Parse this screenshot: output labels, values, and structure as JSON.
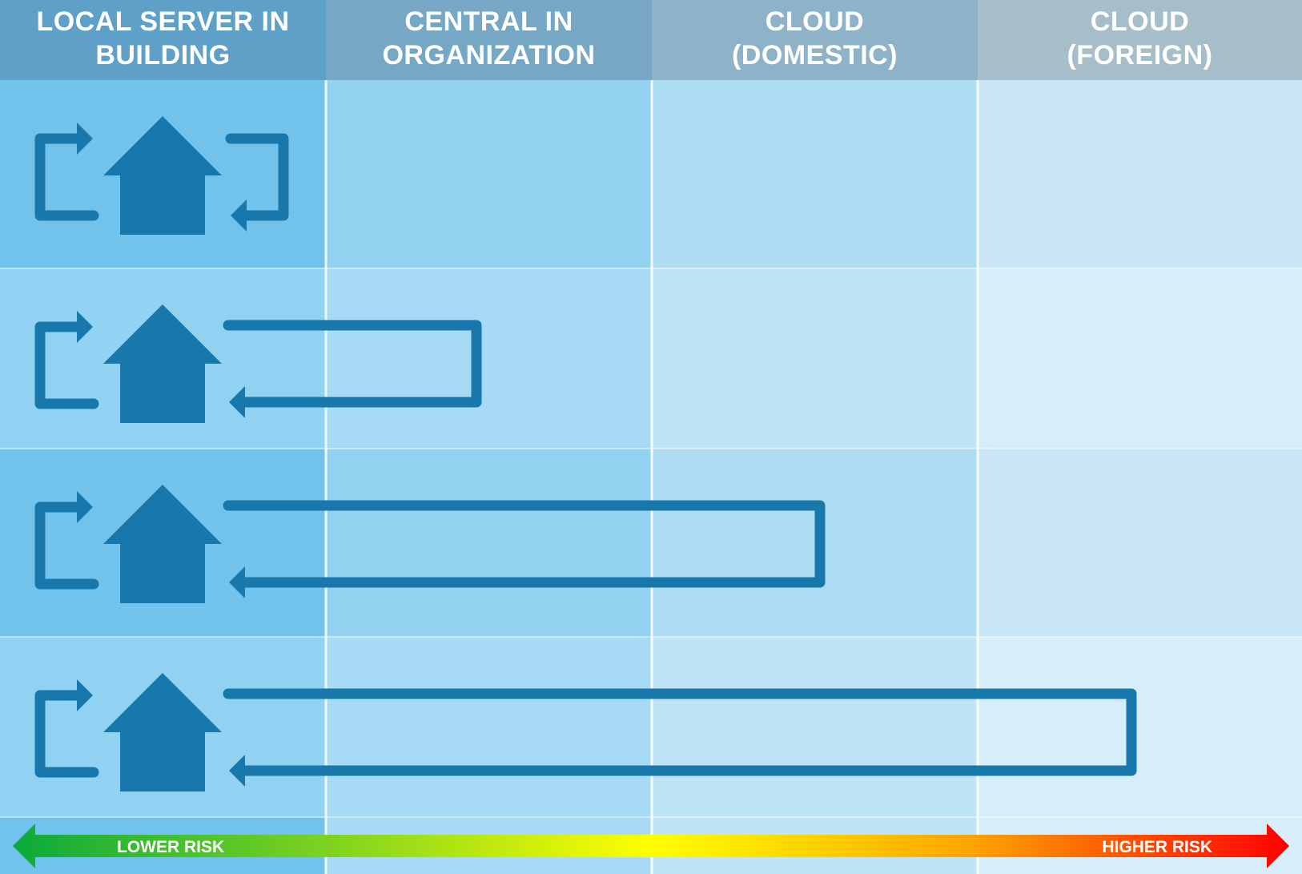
{
  "columns": [
    {
      "line1": "LOCAL SERVER IN",
      "line2": "BUILDING"
    },
    {
      "line1": "CENTRAL IN",
      "line2": "ORGANIZATION"
    },
    {
      "line1": "CLOUD",
      "line2": "(DOMESTIC)"
    },
    {
      "line1": "CLOUD",
      "line2": "(FOREIGN)"
    }
  ],
  "rows": [
    {
      "icon": "house-with-loop-arrows-icon",
      "reach_column": 1
    },
    {
      "icon": "house-with-loop-arrows-icon",
      "reach_column": 2
    },
    {
      "icon": "house-with-loop-arrows-icon",
      "reach_column": 3
    },
    {
      "icon": "house-with-loop-arrows-icon",
      "reach_column": 4
    }
  ],
  "risk_scale": {
    "left_label": "LOWER RISK",
    "right_label": "HIGHER RISK",
    "gradient_colors": [
      "#0aaa3c",
      "#7fd31f",
      "#ffff00",
      "#ffa500",
      "#ff0000"
    ]
  },
  "colors": {
    "icon": "#1878ab",
    "header": [
      "#5ea0c8",
      "#76a8c6",
      "#8eb3c8",
      "#a6bdca"
    ],
    "column_bands": [
      [
        "#72c3ec",
        "#92d2f0",
        "#aedcf3",
        "#c8e6f6"
      ],
      [
        "#91d1f1",
        "#a7daf5",
        "#bfe4f7",
        "#d6eef9"
      ],
      [
        "#72c3ec",
        "#92d2f0",
        "#aedcf3",
        "#c8e6f6"
      ],
      [
        "#91d1f1",
        "#a7daf5",
        "#bfe4f7",
        "#d6eef9"
      ]
    ],
    "footer": [
      "#72c3ec",
      "#a7daf5",
      "#bfe4f7",
      "#d6eef9"
    ]
  }
}
